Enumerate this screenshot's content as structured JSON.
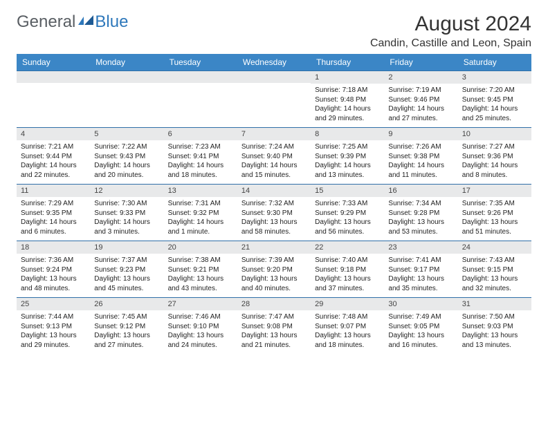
{
  "logo": {
    "general": "General",
    "blue": "Blue"
  },
  "monthTitle": "August 2024",
  "location": "Candin, Castille and Leon, Spain",
  "colors": {
    "headerBg": "#3b86c6",
    "headerText": "#ffffff",
    "dayNumBg": "#e8e9ea",
    "rowBorder": "#2f6fa8",
    "logoGray": "#595e63",
    "logoBlue": "#2e78bb"
  },
  "dayHeaders": [
    "Sunday",
    "Monday",
    "Tuesday",
    "Wednesday",
    "Thursday",
    "Friday",
    "Saturday"
  ],
  "weeks": [
    [
      {
        "n": "",
        "lines": []
      },
      {
        "n": "",
        "lines": []
      },
      {
        "n": "",
        "lines": []
      },
      {
        "n": "",
        "lines": []
      },
      {
        "n": "1",
        "lines": [
          "Sunrise: 7:18 AM",
          "Sunset: 9:48 PM",
          "Daylight: 14 hours and 29 minutes."
        ]
      },
      {
        "n": "2",
        "lines": [
          "Sunrise: 7:19 AM",
          "Sunset: 9:46 PM",
          "Daylight: 14 hours and 27 minutes."
        ]
      },
      {
        "n": "3",
        "lines": [
          "Sunrise: 7:20 AM",
          "Sunset: 9:45 PM",
          "Daylight: 14 hours and 25 minutes."
        ]
      }
    ],
    [
      {
        "n": "4",
        "lines": [
          "Sunrise: 7:21 AM",
          "Sunset: 9:44 PM",
          "Daylight: 14 hours and 22 minutes."
        ]
      },
      {
        "n": "5",
        "lines": [
          "Sunrise: 7:22 AM",
          "Sunset: 9:43 PM",
          "Daylight: 14 hours and 20 minutes."
        ]
      },
      {
        "n": "6",
        "lines": [
          "Sunrise: 7:23 AM",
          "Sunset: 9:41 PM",
          "Daylight: 14 hours and 18 minutes."
        ]
      },
      {
        "n": "7",
        "lines": [
          "Sunrise: 7:24 AM",
          "Sunset: 9:40 PM",
          "Daylight: 14 hours and 15 minutes."
        ]
      },
      {
        "n": "8",
        "lines": [
          "Sunrise: 7:25 AM",
          "Sunset: 9:39 PM",
          "Daylight: 14 hours and 13 minutes."
        ]
      },
      {
        "n": "9",
        "lines": [
          "Sunrise: 7:26 AM",
          "Sunset: 9:38 PM",
          "Daylight: 14 hours and 11 minutes."
        ]
      },
      {
        "n": "10",
        "lines": [
          "Sunrise: 7:27 AM",
          "Sunset: 9:36 PM",
          "Daylight: 14 hours and 8 minutes."
        ]
      }
    ],
    [
      {
        "n": "11",
        "lines": [
          "Sunrise: 7:29 AM",
          "Sunset: 9:35 PM",
          "Daylight: 14 hours and 6 minutes."
        ]
      },
      {
        "n": "12",
        "lines": [
          "Sunrise: 7:30 AM",
          "Sunset: 9:33 PM",
          "Daylight: 14 hours and 3 minutes."
        ]
      },
      {
        "n": "13",
        "lines": [
          "Sunrise: 7:31 AM",
          "Sunset: 9:32 PM",
          "Daylight: 14 hours and 1 minute."
        ]
      },
      {
        "n": "14",
        "lines": [
          "Sunrise: 7:32 AM",
          "Sunset: 9:30 PM",
          "Daylight: 13 hours and 58 minutes."
        ]
      },
      {
        "n": "15",
        "lines": [
          "Sunrise: 7:33 AM",
          "Sunset: 9:29 PM",
          "Daylight: 13 hours and 56 minutes."
        ]
      },
      {
        "n": "16",
        "lines": [
          "Sunrise: 7:34 AM",
          "Sunset: 9:28 PM",
          "Daylight: 13 hours and 53 minutes."
        ]
      },
      {
        "n": "17",
        "lines": [
          "Sunrise: 7:35 AM",
          "Sunset: 9:26 PM",
          "Daylight: 13 hours and 51 minutes."
        ]
      }
    ],
    [
      {
        "n": "18",
        "lines": [
          "Sunrise: 7:36 AM",
          "Sunset: 9:24 PM",
          "Daylight: 13 hours and 48 minutes."
        ]
      },
      {
        "n": "19",
        "lines": [
          "Sunrise: 7:37 AM",
          "Sunset: 9:23 PM",
          "Daylight: 13 hours and 45 minutes."
        ]
      },
      {
        "n": "20",
        "lines": [
          "Sunrise: 7:38 AM",
          "Sunset: 9:21 PM",
          "Daylight: 13 hours and 43 minutes."
        ]
      },
      {
        "n": "21",
        "lines": [
          "Sunrise: 7:39 AM",
          "Sunset: 9:20 PM",
          "Daylight: 13 hours and 40 minutes."
        ]
      },
      {
        "n": "22",
        "lines": [
          "Sunrise: 7:40 AM",
          "Sunset: 9:18 PM",
          "Daylight: 13 hours and 37 minutes."
        ]
      },
      {
        "n": "23",
        "lines": [
          "Sunrise: 7:41 AM",
          "Sunset: 9:17 PM",
          "Daylight: 13 hours and 35 minutes."
        ]
      },
      {
        "n": "24",
        "lines": [
          "Sunrise: 7:43 AM",
          "Sunset: 9:15 PM",
          "Daylight: 13 hours and 32 minutes."
        ]
      }
    ],
    [
      {
        "n": "25",
        "lines": [
          "Sunrise: 7:44 AM",
          "Sunset: 9:13 PM",
          "Daylight: 13 hours and 29 minutes."
        ]
      },
      {
        "n": "26",
        "lines": [
          "Sunrise: 7:45 AM",
          "Sunset: 9:12 PM",
          "Daylight: 13 hours and 27 minutes."
        ]
      },
      {
        "n": "27",
        "lines": [
          "Sunrise: 7:46 AM",
          "Sunset: 9:10 PM",
          "Daylight: 13 hours and 24 minutes."
        ]
      },
      {
        "n": "28",
        "lines": [
          "Sunrise: 7:47 AM",
          "Sunset: 9:08 PM",
          "Daylight: 13 hours and 21 minutes."
        ]
      },
      {
        "n": "29",
        "lines": [
          "Sunrise: 7:48 AM",
          "Sunset: 9:07 PM",
          "Daylight: 13 hours and 18 minutes."
        ]
      },
      {
        "n": "30",
        "lines": [
          "Sunrise: 7:49 AM",
          "Sunset: 9:05 PM",
          "Daylight: 13 hours and 16 minutes."
        ]
      },
      {
        "n": "31",
        "lines": [
          "Sunrise: 7:50 AM",
          "Sunset: 9:03 PM",
          "Daylight: 13 hours and 13 minutes."
        ]
      }
    ]
  ]
}
